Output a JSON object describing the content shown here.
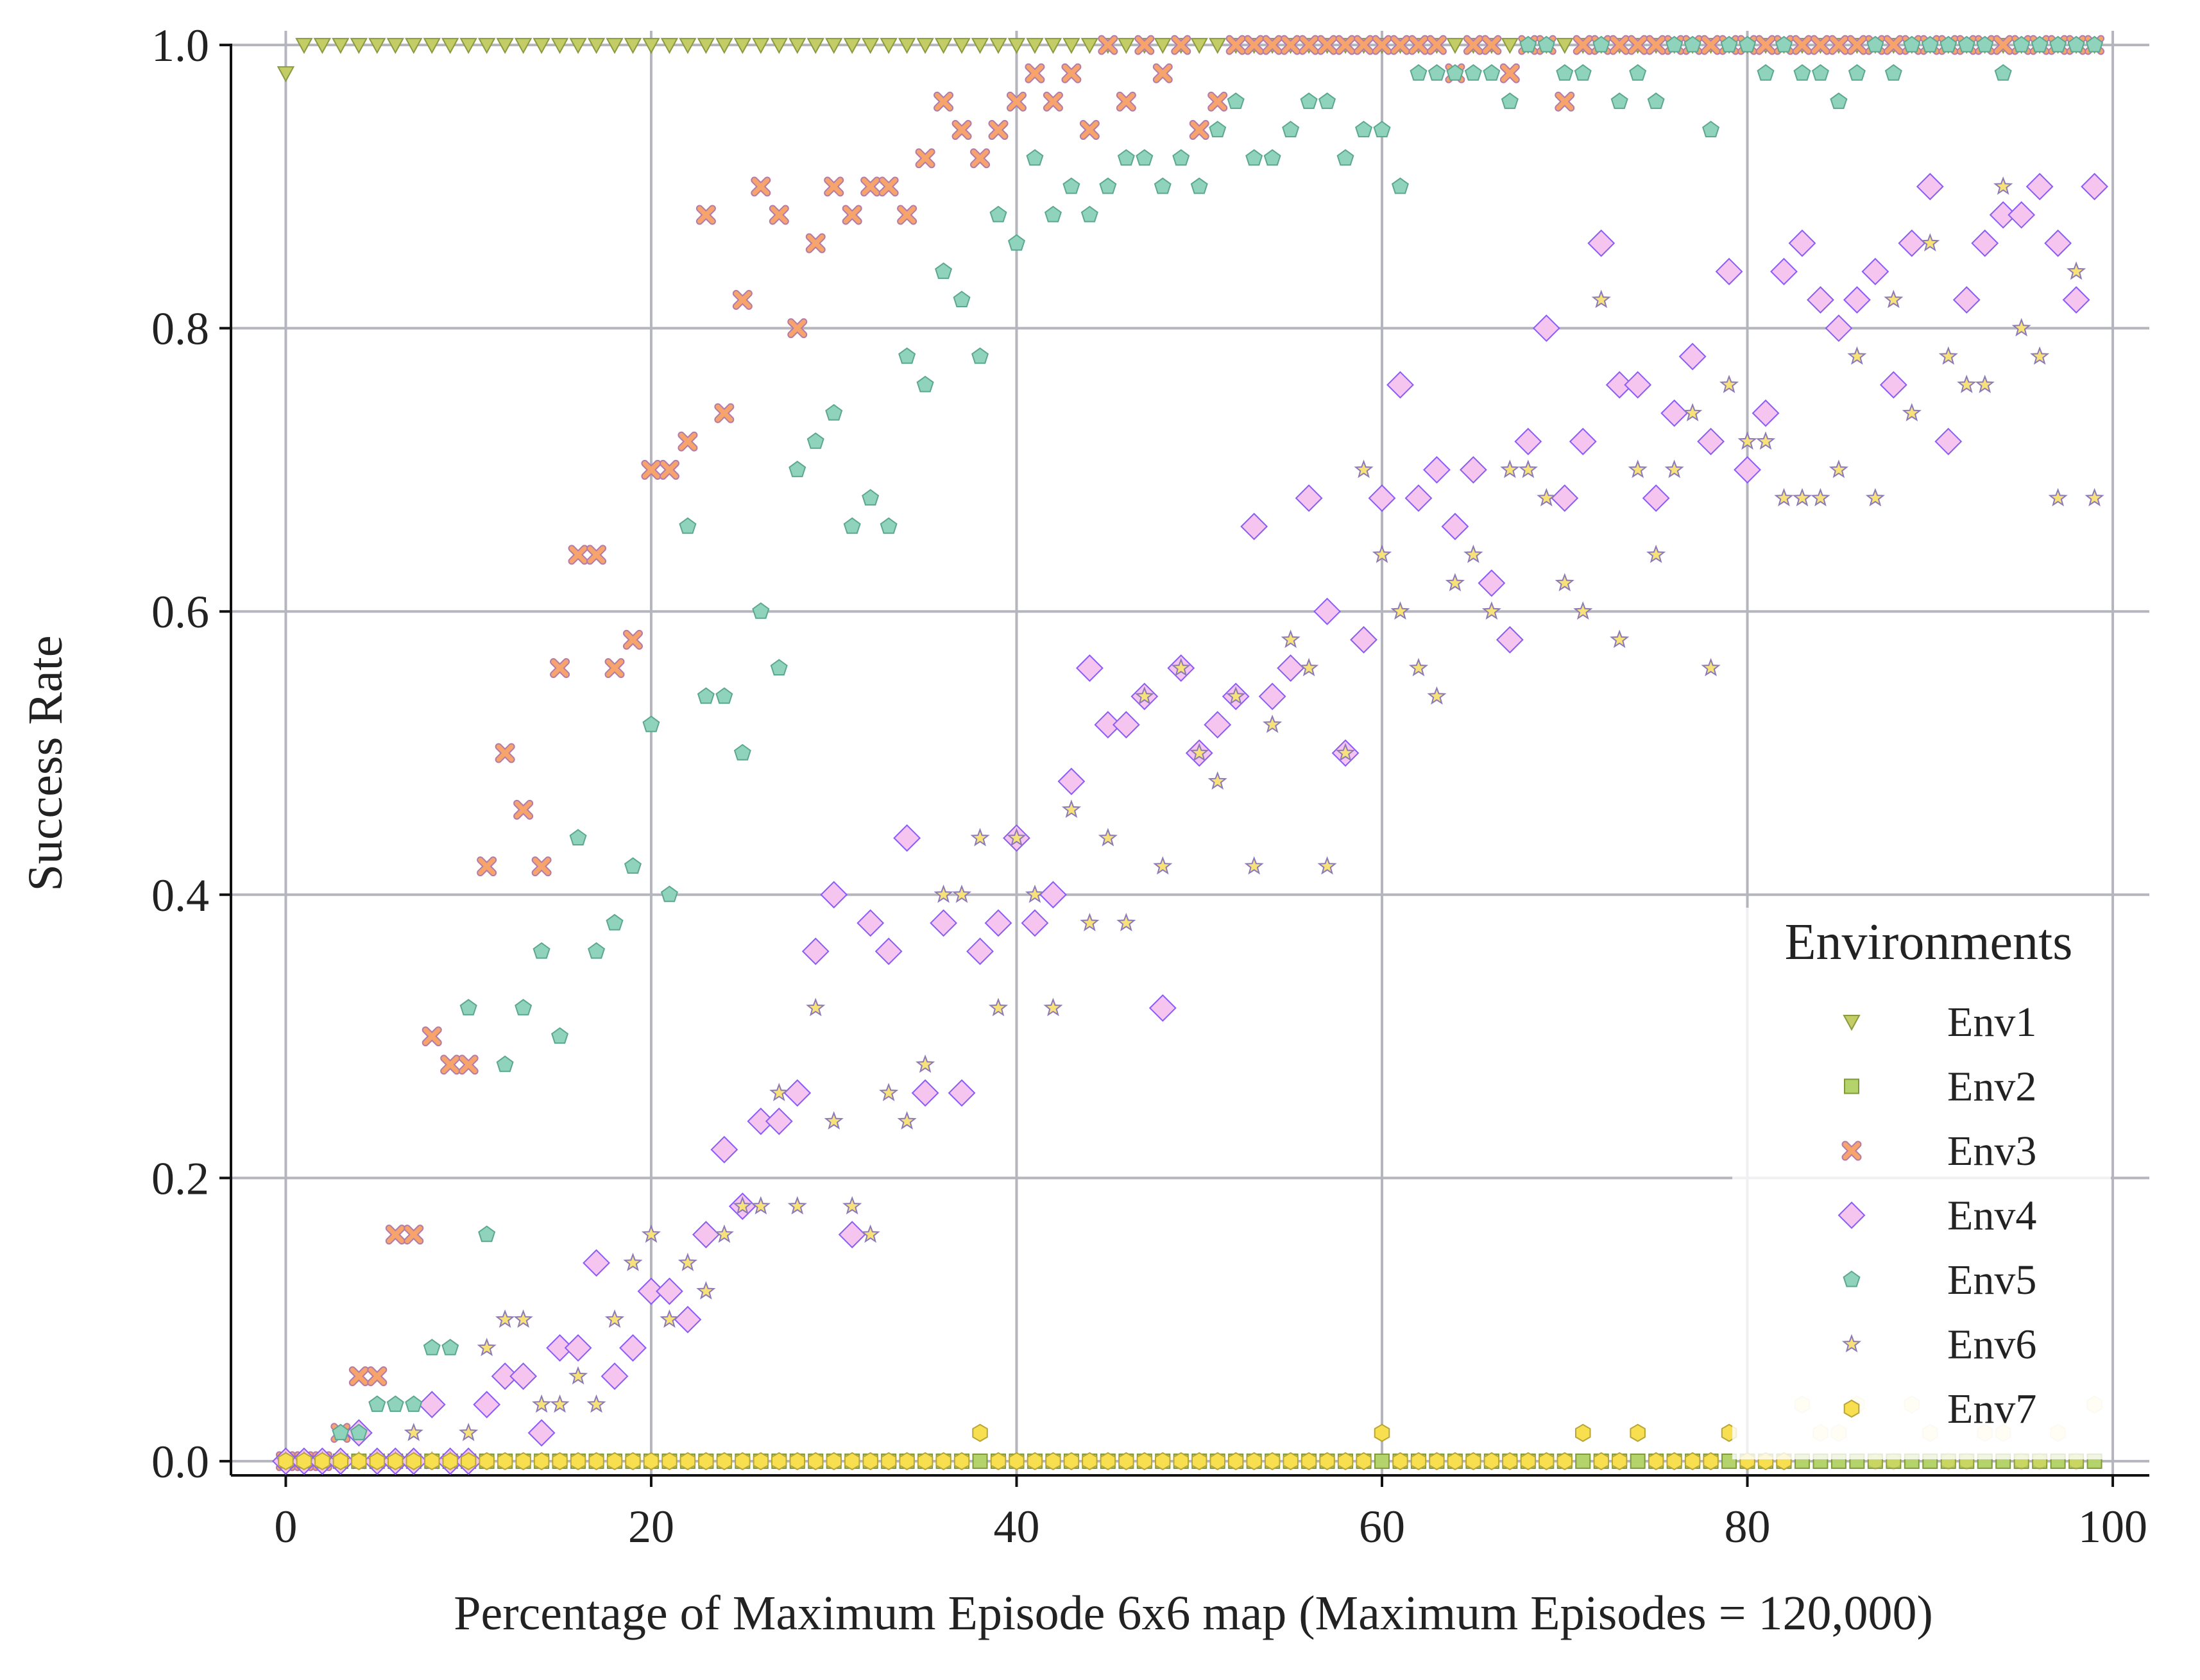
{
  "chart_data": {
    "type": "scatter",
    "xlabel": "Percentage of Maximum Episode 6x6 map (Maximum Episodes = 120,000)",
    "ylabel": "Success Rate",
    "xlim": [
      -3,
      102
    ],
    "ylim": [
      -0.01,
      1.01
    ],
    "xticks": [
      0,
      20,
      40,
      60,
      80,
      100
    ],
    "yticks": [
      0.0,
      0.2,
      0.4,
      0.6,
      0.8,
      1.0
    ],
    "xtick_labels": [
      "0",
      "20",
      "40",
      "60",
      "80",
      "100"
    ],
    "ytick_labels": [
      "0.0",
      "0.2",
      "0.4",
      "0.6",
      "0.8",
      "1.0"
    ],
    "grid": true,
    "legend_title": "Environments",
    "legend_position": "lower-right",
    "series": [
      {
        "name": "Env1",
        "marker": "triangle-down",
        "color": "#c4cc66",
        "edge": "#8a9a40",
        "y": [
          0.98,
          1,
          1,
          1,
          1,
          1,
          1,
          1,
          1,
          1,
          1,
          1,
          1,
          1,
          1,
          1,
          1,
          1,
          1,
          1,
          1,
          1,
          1,
          1,
          1,
          1,
          1,
          1,
          1,
          1,
          1,
          1,
          1,
          1,
          1,
          1,
          1,
          1,
          1,
          1,
          1,
          1,
          1,
          1,
          1,
          1,
          1,
          1,
          1,
          1,
          1,
          1,
          1,
          1,
          1,
          1,
          1,
          1,
          1,
          1,
          1,
          1,
          1,
          1,
          1,
          1,
          1,
          1,
          1,
          1,
          1,
          1,
          1,
          1,
          1,
          1,
          1,
          1,
          1,
          1,
          1,
          1,
          1,
          1,
          1,
          1,
          1,
          1,
          1,
          1,
          1,
          1,
          1,
          1,
          1,
          1,
          1,
          1,
          1,
          1
        ]
      },
      {
        "name": "Env2",
        "marker": "square",
        "color": "#b5d36b",
        "edge": "#7e9a3a",
        "y": [
          0,
          0,
          0,
          0,
          0,
          0,
          0,
          0,
          0,
          0,
          0,
          0,
          0,
          0,
          0,
          0,
          0,
          0,
          0,
          0,
          0,
          0,
          0,
          0,
          0,
          0,
          0,
          0,
          0,
          0,
          0,
          0,
          0,
          0,
          0,
          0,
          0,
          0,
          0,
          0,
          0,
          0,
          0,
          0,
          0,
          0,
          0,
          0,
          0,
          0,
          0,
          0,
          0,
          0,
          0,
          0,
          0,
          0,
          0,
          0,
          0,
          0,
          0,
          0,
          0,
          0,
          0,
          0,
          0,
          0,
          0,
          0,
          0,
          0,
          0,
          0,
          0,
          0,
          0,
          0,
          0,
          0,
          0,
          0,
          0,
          0,
          0,
          0,
          0,
          0,
          0,
          0,
          0,
          0,
          0,
          0,
          0,
          0,
          0,
          0
        ]
      },
      {
        "name": "Env3",
        "marker": "x",
        "color": "#f7a46c",
        "edge": "#b47aa8",
        "y": [
          0,
          0,
          0,
          0.02,
          0.06,
          0.06,
          0.16,
          0.16,
          0.3,
          0.28,
          0.28,
          0.42,
          0.5,
          0.46,
          0.42,
          0.56,
          0.64,
          0.64,
          0.56,
          0.58,
          0.7,
          0.7,
          0.72,
          0.88,
          0.74,
          0.82,
          0.9,
          0.88,
          0.8,
          0.86,
          0.9,
          0.88,
          0.9,
          0.9,
          0.88,
          0.92,
          0.96,
          0.94,
          0.92,
          0.94,
          0.96,
          0.98,
          0.96,
          0.98,
          0.94,
          1,
          0.96,
          1,
          0.98,
          1,
          0.94,
          0.96,
          1,
          1,
          1,
          1,
          1,
          1,
          1,
          1,
          1,
          1,
          1,
          1,
          0.98,
          1,
          1,
          0.98,
          1,
          1,
          0.96,
          1,
          1,
          1,
          1,
          1,
          1,
          1,
          1,
          1,
          1,
          1,
          1,
          1,
          1,
          1,
          1,
          1,
          1,
          1,
          1,
          1,
          1,
          1,
          1,
          1,
          1,
          1,
          1,
          1
        ]
      },
      {
        "name": "Env4",
        "marker": "diamond",
        "color": "#f6c5ef",
        "edge": "#8a5cf6",
        "y": [
          0,
          0,
          0,
          0,
          0.02,
          0,
          0,
          0,
          0.04,
          0,
          0,
          0.04,
          0.06,
          0.06,
          0.02,
          0.08,
          0.08,
          0.14,
          0.06,
          0.08,
          0.12,
          0.12,
          0.1,
          0.16,
          0.22,
          0.18,
          0.24,
          0.24,
          0.26,
          0.36,
          0.4,
          0.16,
          0.38,
          0.36,
          0.44,
          0.26,
          0.38,
          0.26,
          0.36,
          0.38,
          0.44,
          0.38,
          0.4,
          0.48,
          0.56,
          0.52,
          0.52,
          0.54,
          0.32,
          0.56,
          0.5,
          0.52,
          0.54,
          0.66,
          0.54,
          0.56,
          0.68,
          0.6,
          0.5,
          0.58,
          0.68,
          0.76,
          0.68,
          0.7,
          0.66,
          0.7,
          0.62,
          0.58,
          0.72,
          0.8,
          0.68,
          0.72,
          0.86,
          0.76,
          0.76,
          0.68,
          0.74,
          0.78,
          0.72,
          0.84,
          0.7,
          0.74,
          0.84,
          0.86,
          0.82,
          0.8,
          0.82,
          0.84,
          0.76,
          0.86,
          0.9,
          0.72,
          0.82,
          0.86,
          0.88,
          0.88,
          0.9,
          0.86,
          0.82,
          0.9
        ]
      },
      {
        "name": "Env5",
        "marker": "pentagon",
        "color": "#8fd3bd",
        "edge": "#5ba88f",
        "y": [
          0,
          0,
          0,
          0.02,
          0.02,
          0.04,
          0.04,
          0.04,
          0.08,
          0.08,
          0.32,
          0.16,
          0.28,
          0.32,
          0.36,
          0.3,
          0.44,
          0.36,
          0.38,
          0.42,
          0.52,
          0.4,
          0.66,
          0.54,
          0.54,
          0.5,
          0.6,
          0.56,
          0.7,
          0.72,
          0.74,
          0.66,
          0.68,
          0.66,
          0.78,
          0.76,
          0.84,
          0.82,
          0.78,
          0.88,
          0.86,
          0.92,
          0.88,
          0.9,
          0.88,
          0.9,
          0.92,
          0.92,
          0.9,
          0.92,
          0.9,
          0.94,
          0.96,
          0.92,
          0.92,
          0.94,
          0.96,
          0.96,
          0.92,
          0.94,
          0.94,
          0.9,
          0.98,
          0.98,
          0.98,
          0.98,
          0.98,
          0.96,
          1,
          1,
          0.98,
          0.98,
          1,
          0.96,
          0.98,
          0.96,
          1,
          1,
          0.94,
          1,
          1,
          0.98,
          1,
          0.98,
          0.98,
          0.96,
          0.98,
          1,
          0.98,
          1,
          1,
          1,
          1,
          1,
          0.98,
          1,
          1,
          1,
          1,
          1
        ]
      },
      {
        "name": "Env6",
        "marker": "star",
        "color": "#f7e27a",
        "edge": "#8c7ab8",
        "y": [
          0,
          0,
          0,
          0,
          0,
          0,
          0,
          0.02,
          0,
          0,
          0.02,
          0.08,
          0.1,
          0.1,
          0.04,
          0.04,
          0.06,
          0.04,
          0.1,
          0.14,
          0.16,
          0.1,
          0.14,
          0.12,
          0.16,
          0.18,
          0.18,
          0.26,
          0.18,
          0.32,
          0.24,
          0.18,
          0.16,
          0.26,
          0.24,
          0.28,
          0.4,
          0.4,
          0.44,
          0.32,
          0.44,
          0.4,
          0.32,
          0.46,
          0.38,
          0.44,
          0.38,
          0.54,
          0.42,
          0.56,
          0.5,
          0.48,
          0.54,
          0.42,
          0.52,
          0.58,
          0.56,
          0.42,
          0.5,
          0.7,
          0.64,
          0.6,
          0.56,
          0.54,
          0.62,
          0.64,
          0.6,
          0.7,
          0.7,
          0.68,
          0.62,
          0.6,
          0.82,
          0.58,
          0.7,
          0.64,
          0.7,
          0.74,
          0.56,
          0.76,
          0.72,
          0.72,
          0.68,
          0.68,
          0.68,
          0.7,
          0.78,
          0.68,
          0.82,
          0.74,
          0.86,
          0.78,
          0.76,
          0.76,
          0.9,
          0.8,
          0.78,
          0.68,
          0.84,
          0.68
        ]
      },
      {
        "name": "Env7",
        "marker": "hexagon",
        "color": "#f7df4f",
        "edge": "#b8a53a",
        "alpha": [
          1,
          1,
          1,
          1,
          1,
          1,
          1,
          1,
          1,
          1,
          1,
          1,
          1,
          1,
          1,
          1,
          1,
          1,
          1,
          1,
          1,
          1,
          1,
          1,
          1,
          1,
          1,
          1,
          1,
          1,
          1,
          1,
          1,
          1,
          1,
          1,
          1,
          1,
          1,
          1,
          1,
          1,
          1,
          1,
          1,
          1,
          1,
          1,
          1,
          1,
          1,
          1,
          1,
          1,
          1,
          1,
          1,
          1,
          1,
          1,
          1,
          1,
          1,
          1,
          1,
          1,
          1,
          1,
          1,
          1,
          1,
          1,
          1,
          1,
          1,
          1,
          1,
          1,
          1,
          1,
          1,
          1,
          1,
          0.3,
          0.3,
          0.3,
          0.3,
          0.3,
          0.3,
          0.3,
          0.3,
          0.3,
          0.3,
          0.3,
          0.3,
          0.3,
          0.3,
          0.3,
          0.3,
          0.3
        ],
        "y": [
          0,
          0,
          0,
          0,
          0,
          0,
          0,
          0,
          0,
          0,
          0,
          0,
          0,
          0,
          0,
          0,
          0,
          0,
          0,
          0,
          0,
          0,
          0,
          0,
          0,
          0,
          0,
          0,
          0,
          0,
          0,
          0,
          0,
          0,
          0,
          0,
          0,
          0,
          0.02,
          0,
          0,
          0,
          0,
          0,
          0,
          0,
          0,
          0,
          0,
          0,
          0,
          0,
          0,
          0,
          0,
          0,
          0,
          0,
          0,
          0,
          0.02,
          0,
          0,
          0,
          0,
          0,
          0,
          0,
          0,
          0,
          0,
          0.02,
          0,
          0,
          0.02,
          0,
          0,
          0,
          0,
          0.02,
          0,
          0,
          0,
          0.04,
          0.02,
          0.02,
          0.04,
          0,
          0,
          0.04,
          0.02,
          0,
          0,
          0.02,
          0.02,
          0,
          0,
          0.02,
          0,
          0.04
        ]
      }
    ]
  }
}
